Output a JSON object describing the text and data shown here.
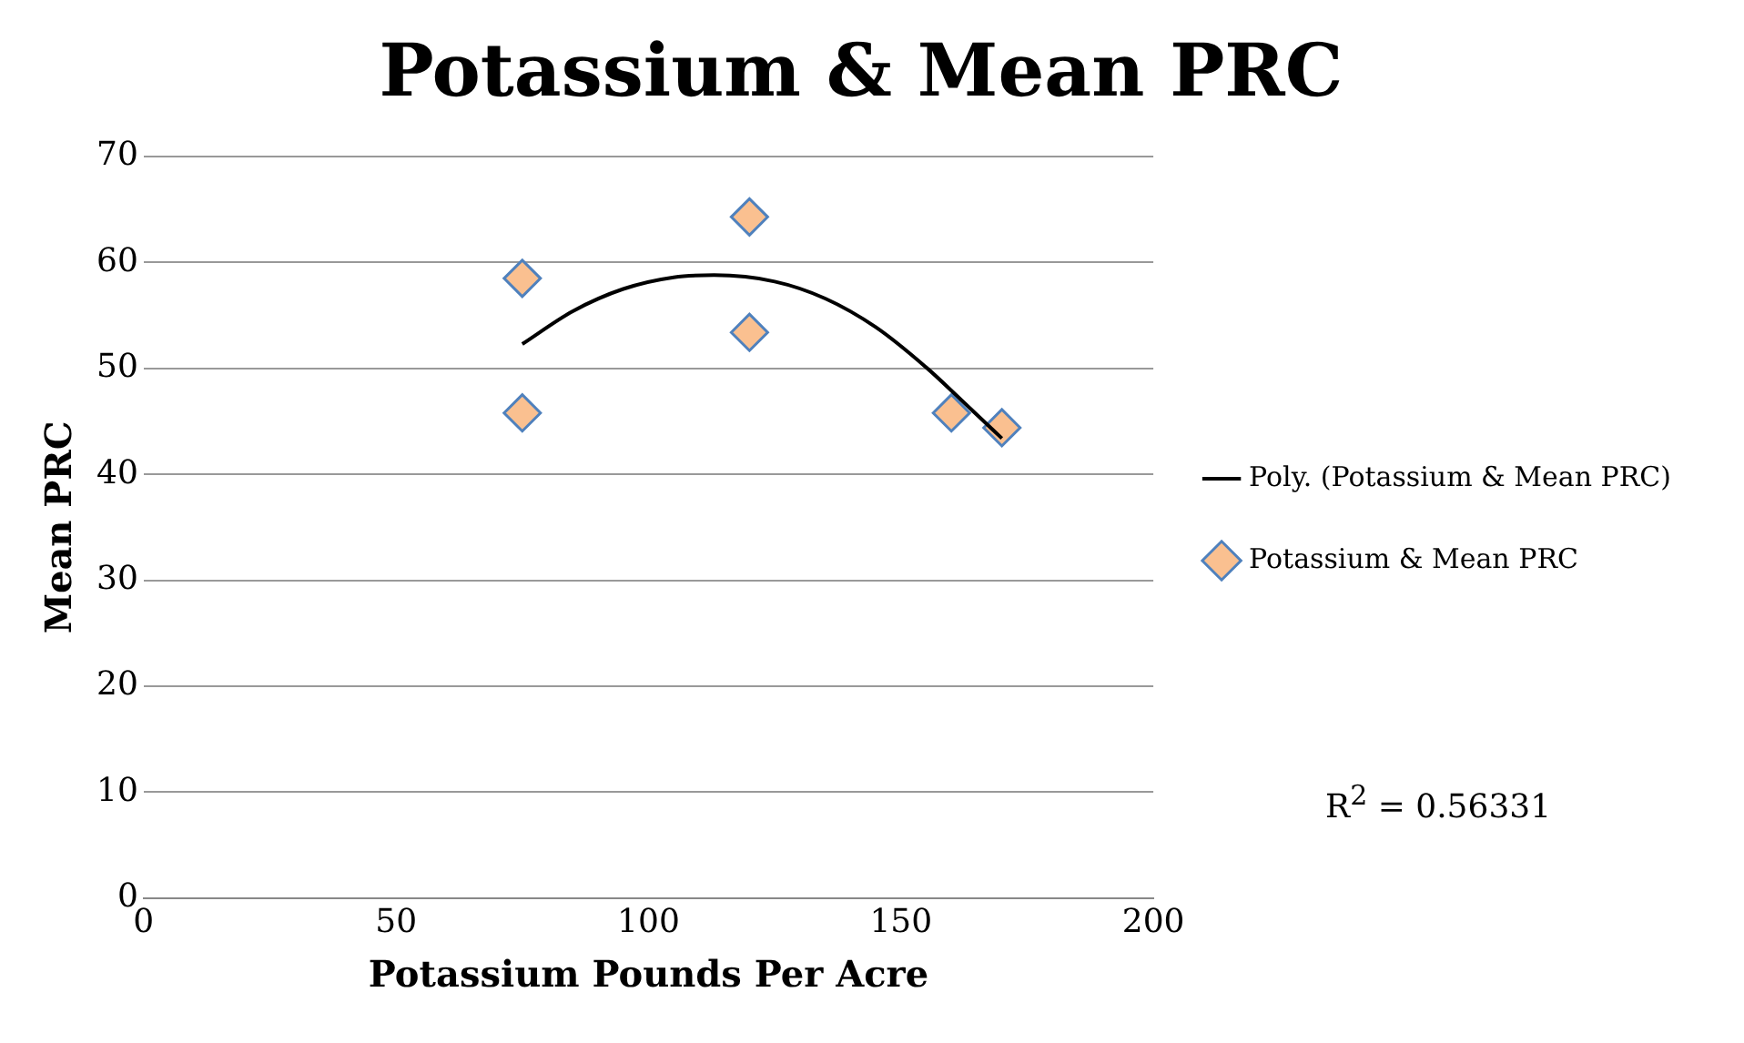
{
  "chart_data": {
    "type": "scatter",
    "title": "Potassium & Mean PRC",
    "xlabel": "Potassium Pounds Per Acre",
    "ylabel": "Mean PRC",
    "series": [
      {
        "name": "Potassium & Mean PRC",
        "color": "#fac090",
        "marker": "diamond",
        "x": [
          75,
          75,
          120,
          120,
          160,
          170
        ],
        "values": [
          58.5,
          45.8,
          64.3,
          53.4,
          45.8,
          44.4
        ]
      },
      {
        "name": "Poly. (Potassium & Mean PRC)",
        "type": "line",
        "color": "#000000",
        "marker": "none",
        "line_style": "solid",
        "x": [
          75,
          85,
          95,
          105,
          113,
          125,
          135,
          145,
          155,
          162,
          170
        ],
        "values": [
          52.3,
          55.4,
          57.5,
          58.6,
          58.8,
          58.2,
          56.6,
          53.9,
          50.1,
          47.0,
          43.4
        ]
      }
    ],
    "xlim": [
      0,
      200
    ],
    "xticks": [
      0,
      50,
      100,
      150,
      200
    ],
    "ylim": [
      0,
      70
    ],
    "yticks": [
      0,
      10,
      20,
      30,
      40,
      50,
      60,
      70
    ],
    "grid": "y",
    "legend": "right",
    "annotations": [
      "R$^{2}$ = 0.56331"
    ]
  }
}
